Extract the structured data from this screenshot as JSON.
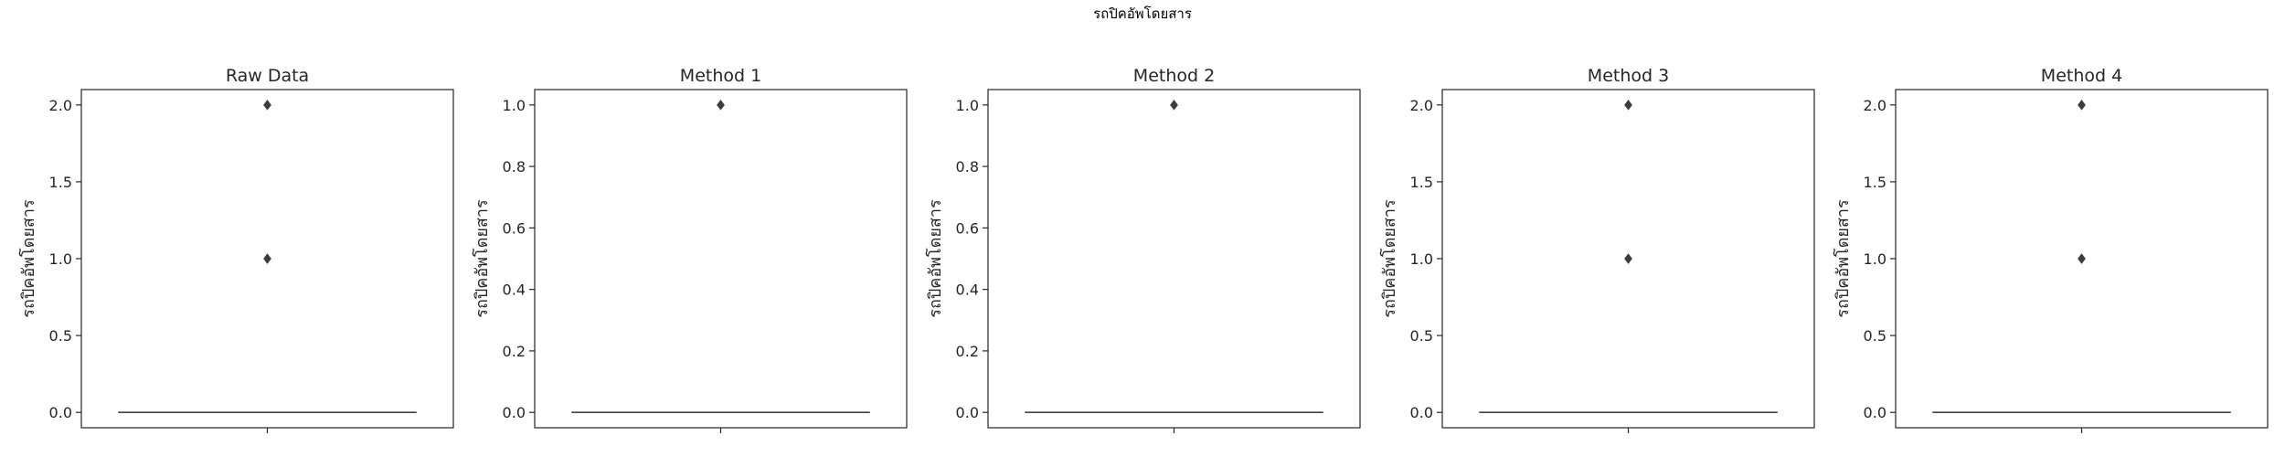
{
  "figure": {
    "title": "รถปิคอัพโดยสาร"
  },
  "chart_data": [
    {
      "type": "box",
      "title": "Raw Data",
      "xlabel": "",
      "ylabel": "รถปิคอัพโดยสาร",
      "ylim": [
        -0.1,
        2.1
      ],
      "yticks": [
        "0.0",
        "0.5",
        "1.0",
        "1.5",
        "2.0"
      ],
      "median": 0.0,
      "q1": 0.0,
      "q3": 0.0,
      "whisker_low": 0.0,
      "whisker_high": 0.0,
      "outliers": [
        1.0,
        2.0
      ]
    },
    {
      "type": "box",
      "title": "Method 1",
      "xlabel": "",
      "ylabel": "รถปิคอัพโดยสาร",
      "ylim": [
        -0.05,
        1.05
      ],
      "yticks": [
        "0.0",
        "0.2",
        "0.4",
        "0.6",
        "0.8",
        "1.0"
      ],
      "median": 0.0,
      "q1": 0.0,
      "q3": 0.0,
      "whisker_low": 0.0,
      "whisker_high": 0.0,
      "outliers": [
        1.0
      ]
    },
    {
      "type": "box",
      "title": "Method 2",
      "xlabel": "",
      "ylabel": "รถปิคอัพโดยสาร",
      "ylim": [
        -0.05,
        1.05
      ],
      "yticks": [
        "0.0",
        "0.2",
        "0.4",
        "0.6",
        "0.8",
        "1.0"
      ],
      "median": 0.0,
      "q1": 0.0,
      "q3": 0.0,
      "whisker_low": 0.0,
      "whisker_high": 0.0,
      "outliers": [
        1.0
      ]
    },
    {
      "type": "box",
      "title": "Method 3",
      "xlabel": "",
      "ylabel": "รถปิคอัพโดยสาร",
      "ylim": [
        -0.1,
        2.1
      ],
      "yticks": [
        "0.0",
        "0.5",
        "1.0",
        "1.5",
        "2.0"
      ],
      "median": 0.0,
      "q1": 0.0,
      "q3": 0.0,
      "whisker_low": 0.0,
      "whisker_high": 0.0,
      "outliers": [
        1.0,
        2.0
      ]
    },
    {
      "type": "box",
      "title": "Method 4",
      "xlabel": "",
      "ylabel": "รถปิคอัพโดยสาร",
      "ylim": [
        -0.1,
        2.1
      ],
      "yticks": [
        "0.0",
        "0.5",
        "1.0",
        "1.5",
        "2.0"
      ],
      "median": 0.0,
      "q1": 0.0,
      "q3": 0.0,
      "whisker_low": 0.0,
      "whisker_high": 0.0,
      "outliers": [
        1.0,
        2.0
      ]
    }
  ]
}
